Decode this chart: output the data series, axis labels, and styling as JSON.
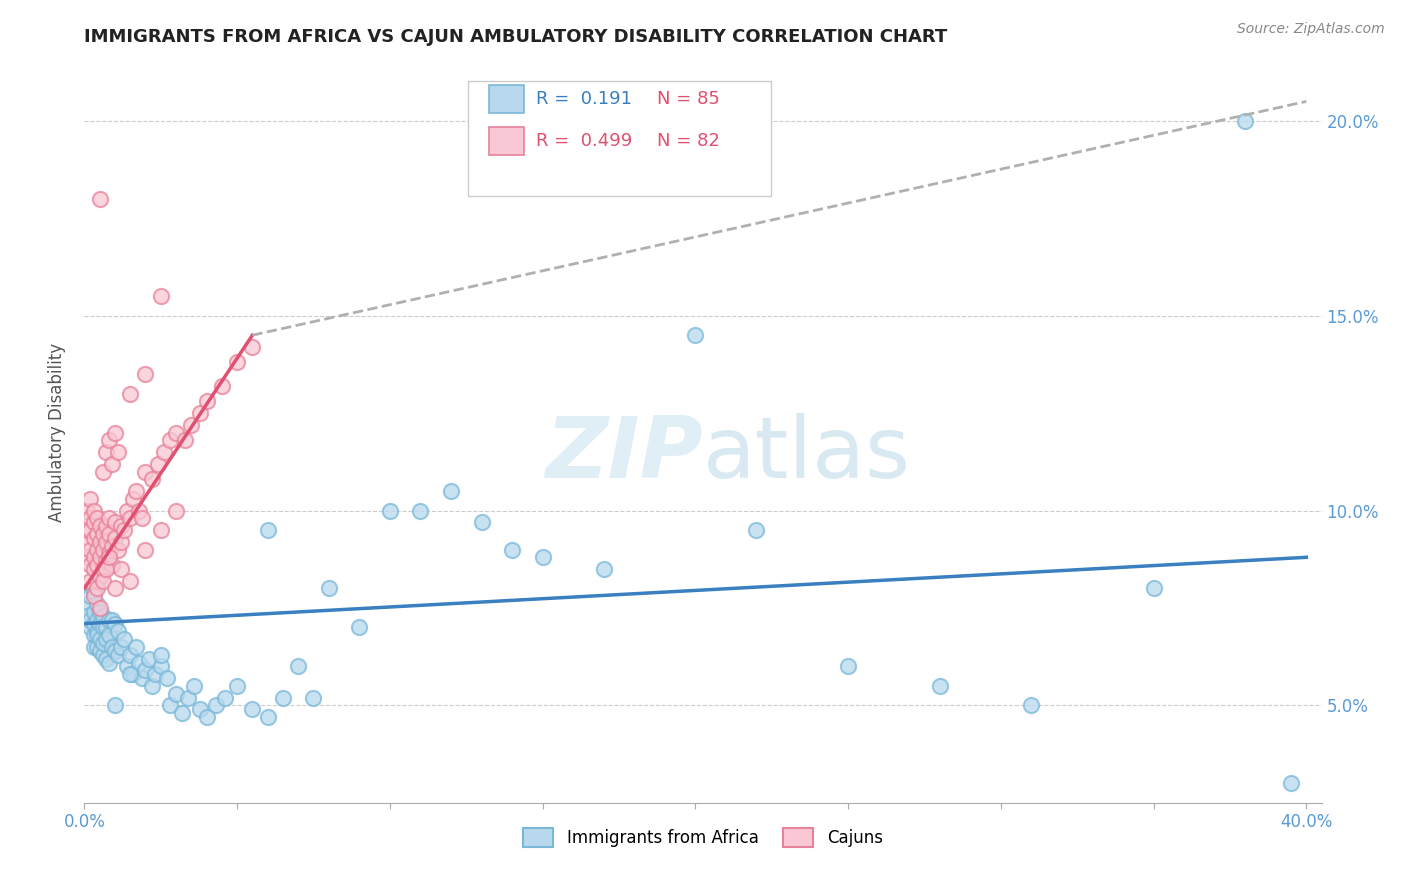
{
  "title": "IMMIGRANTS FROM AFRICA VS CAJUN AMBULATORY DISABILITY CORRELATION CHART",
  "source": "Source: ZipAtlas.com",
  "ylabel": "Ambulatory Disability",
  "legend": {
    "blue_r": "0.191",
    "blue_n": "85",
    "pink_r": "0.499",
    "pink_n": "82"
  },
  "blue_color": "#7ab8d9",
  "blue_fill": "#b8d9ed",
  "pink_color": "#e8829a",
  "pink_fill": "#f9c8d4",
  "blue_line_color": "#3a7fbf",
  "pink_line_color": "#e05070",
  "trend_line_color": "#b0b0b0",
  "background_color": "#ffffff",
  "xlim": [
    0.0,
    0.405
  ],
  "ylim": [
    0.025,
    0.215
  ],
  "ytick_vals": [
    0.05,
    0.1,
    0.15,
    0.2
  ],
  "blue_scatter_x": [
    0.001,
    0.001,
    0.002,
    0.002,
    0.002,
    0.003,
    0.003,
    0.003,
    0.003,
    0.003,
    0.004,
    0.004,
    0.004,
    0.004,
    0.004,
    0.005,
    0.005,
    0.005,
    0.005,
    0.006,
    0.006,
    0.006,
    0.006,
    0.007,
    0.007,
    0.007,
    0.008,
    0.008,
    0.008,
    0.009,
    0.009,
    0.01,
    0.01,
    0.011,
    0.011,
    0.012,
    0.013,
    0.014,
    0.015,
    0.016,
    0.017,
    0.018,
    0.019,
    0.02,
    0.021,
    0.022,
    0.023,
    0.025,
    0.027,
    0.028,
    0.03,
    0.032,
    0.034,
    0.036,
    0.038,
    0.04,
    0.043,
    0.046,
    0.05,
    0.055,
    0.06,
    0.065,
    0.07,
    0.075,
    0.08,
    0.09,
    0.1,
    0.11,
    0.12,
    0.13,
    0.14,
    0.15,
    0.17,
    0.2,
    0.22,
    0.25,
    0.28,
    0.31,
    0.35,
    0.38,
    0.395,
    0.01,
    0.015,
    0.025,
    0.06
  ],
  "blue_scatter_y": [
    0.076,
    0.073,
    0.07,
    0.072,
    0.078,
    0.068,
    0.071,
    0.074,
    0.079,
    0.065,
    0.069,
    0.072,
    0.076,
    0.065,
    0.068,
    0.064,
    0.067,
    0.071,
    0.074,
    0.063,
    0.066,
    0.073,
    0.07,
    0.062,
    0.07,
    0.067,
    0.061,
    0.068,
    0.072,
    0.065,
    0.072,
    0.064,
    0.071,
    0.063,
    0.069,
    0.065,
    0.067,
    0.06,
    0.063,
    0.058,
    0.065,
    0.061,
    0.057,
    0.059,
    0.062,
    0.055,
    0.058,
    0.06,
    0.057,
    0.05,
    0.053,
    0.048,
    0.052,
    0.055,
    0.049,
    0.047,
    0.05,
    0.052,
    0.055,
    0.049,
    0.047,
    0.052,
    0.06,
    0.052,
    0.08,
    0.07,
    0.1,
    0.1,
    0.105,
    0.097,
    0.09,
    0.088,
    0.085,
    0.145,
    0.095,
    0.06,
    0.055,
    0.05,
    0.08,
    0.2,
    0.03,
    0.05,
    0.058,
    0.063,
    0.095
  ],
  "pink_scatter_x": [
    0.001,
    0.001,
    0.001,
    0.001,
    0.002,
    0.002,
    0.002,
    0.002,
    0.002,
    0.002,
    0.003,
    0.003,
    0.003,
    0.003,
    0.003,
    0.004,
    0.004,
    0.004,
    0.004,
    0.004,
    0.005,
    0.005,
    0.005,
    0.005,
    0.006,
    0.006,
    0.006,
    0.007,
    0.007,
    0.007,
    0.008,
    0.008,
    0.008,
    0.009,
    0.009,
    0.01,
    0.01,
    0.011,
    0.012,
    0.012,
    0.013,
    0.014,
    0.015,
    0.016,
    0.017,
    0.018,
    0.019,
    0.02,
    0.022,
    0.024,
    0.026,
    0.028,
    0.03,
    0.033,
    0.035,
    0.038,
    0.04,
    0.045,
    0.05,
    0.055,
    0.003,
    0.004,
    0.005,
    0.006,
    0.007,
    0.008,
    0.01,
    0.012,
    0.015,
    0.02,
    0.025,
    0.03,
    0.006,
    0.007,
    0.008,
    0.009,
    0.01,
    0.011,
    0.015,
    0.02,
    0.025,
    0.005
  ],
  "pink_scatter_y": [
    0.088,
    0.092,
    0.095,
    0.1,
    0.082,
    0.086,
    0.09,
    0.095,
    0.098,
    0.103,
    0.085,
    0.088,
    0.093,
    0.097,
    0.1,
    0.082,
    0.086,
    0.09,
    0.094,
    0.098,
    0.083,
    0.088,
    0.092,
    0.096,
    0.085,
    0.09,
    0.094,
    0.087,
    0.092,
    0.096,
    0.089,
    0.094,
    0.098,
    0.086,
    0.091,
    0.093,
    0.097,
    0.09,
    0.092,
    0.096,
    0.095,
    0.1,
    0.098,
    0.103,
    0.105,
    0.1,
    0.098,
    0.11,
    0.108,
    0.112,
    0.115,
    0.118,
    0.12,
    0.118,
    0.122,
    0.125,
    0.128,
    0.132,
    0.138,
    0.142,
    0.078,
    0.08,
    0.075,
    0.082,
    0.085,
    0.088,
    0.08,
    0.085,
    0.082,
    0.09,
    0.095,
    0.1,
    0.11,
    0.115,
    0.118,
    0.112,
    0.12,
    0.115,
    0.13,
    0.135,
    0.155,
    0.18
  ],
  "blue_trend_x": [
    0.0,
    0.4
  ],
  "blue_trend_y": [
    0.071,
    0.088
  ],
  "pink_trend_x": [
    0.0,
    0.055
  ],
  "pink_trend_y": [
    0.08,
    0.145
  ],
  "gray_trend_x": [
    0.055,
    0.4
  ],
  "gray_trend_y": [
    0.145,
    0.205
  ]
}
